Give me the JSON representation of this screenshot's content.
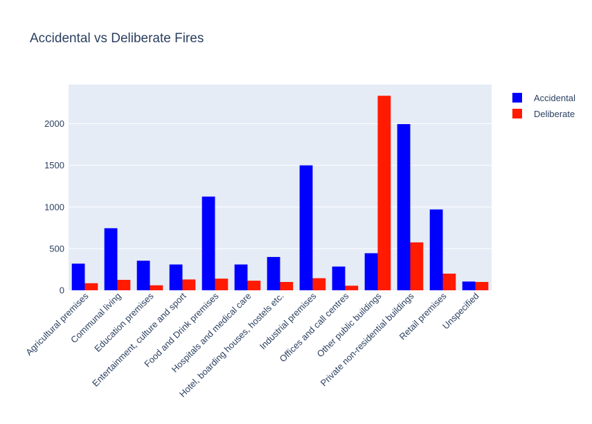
{
  "chart_data": {
    "type": "bar",
    "title": "Accidental vs Deliberate Fires",
    "xlabel": "",
    "ylabel": "",
    "ylim": [
      0,
      2470
    ],
    "yticks": [
      0,
      500,
      1000,
      1500,
      2000
    ],
    "grid": true,
    "legend_position": "top-right",
    "categories": [
      "Agricultural premises",
      "Communal living",
      "Education premises",
      "Entertainment, culture and sport",
      "Food and Drink premises",
      "Hospitals and medical care",
      "Hotel, boarding houses, hostels etc.",
      "Industrial premises",
      "Offices and call centres",
      "Other public buildings",
      "Private non-residential buildings",
      "Retail premises",
      "Unspecified"
    ],
    "series": [
      {
        "name": "Accidental",
        "color": "#0000ff",
        "values": [
          320,
          745,
          355,
          310,
          1125,
          310,
          400,
          1500,
          285,
          445,
          1995,
          970,
          105
        ]
      },
      {
        "name": "Deliberate",
        "color": "#ff1a00",
        "values": [
          85,
          125,
          60,
          130,
          140,
          115,
          100,
          145,
          55,
          2335,
          575,
          200,
          100
        ]
      }
    ]
  }
}
